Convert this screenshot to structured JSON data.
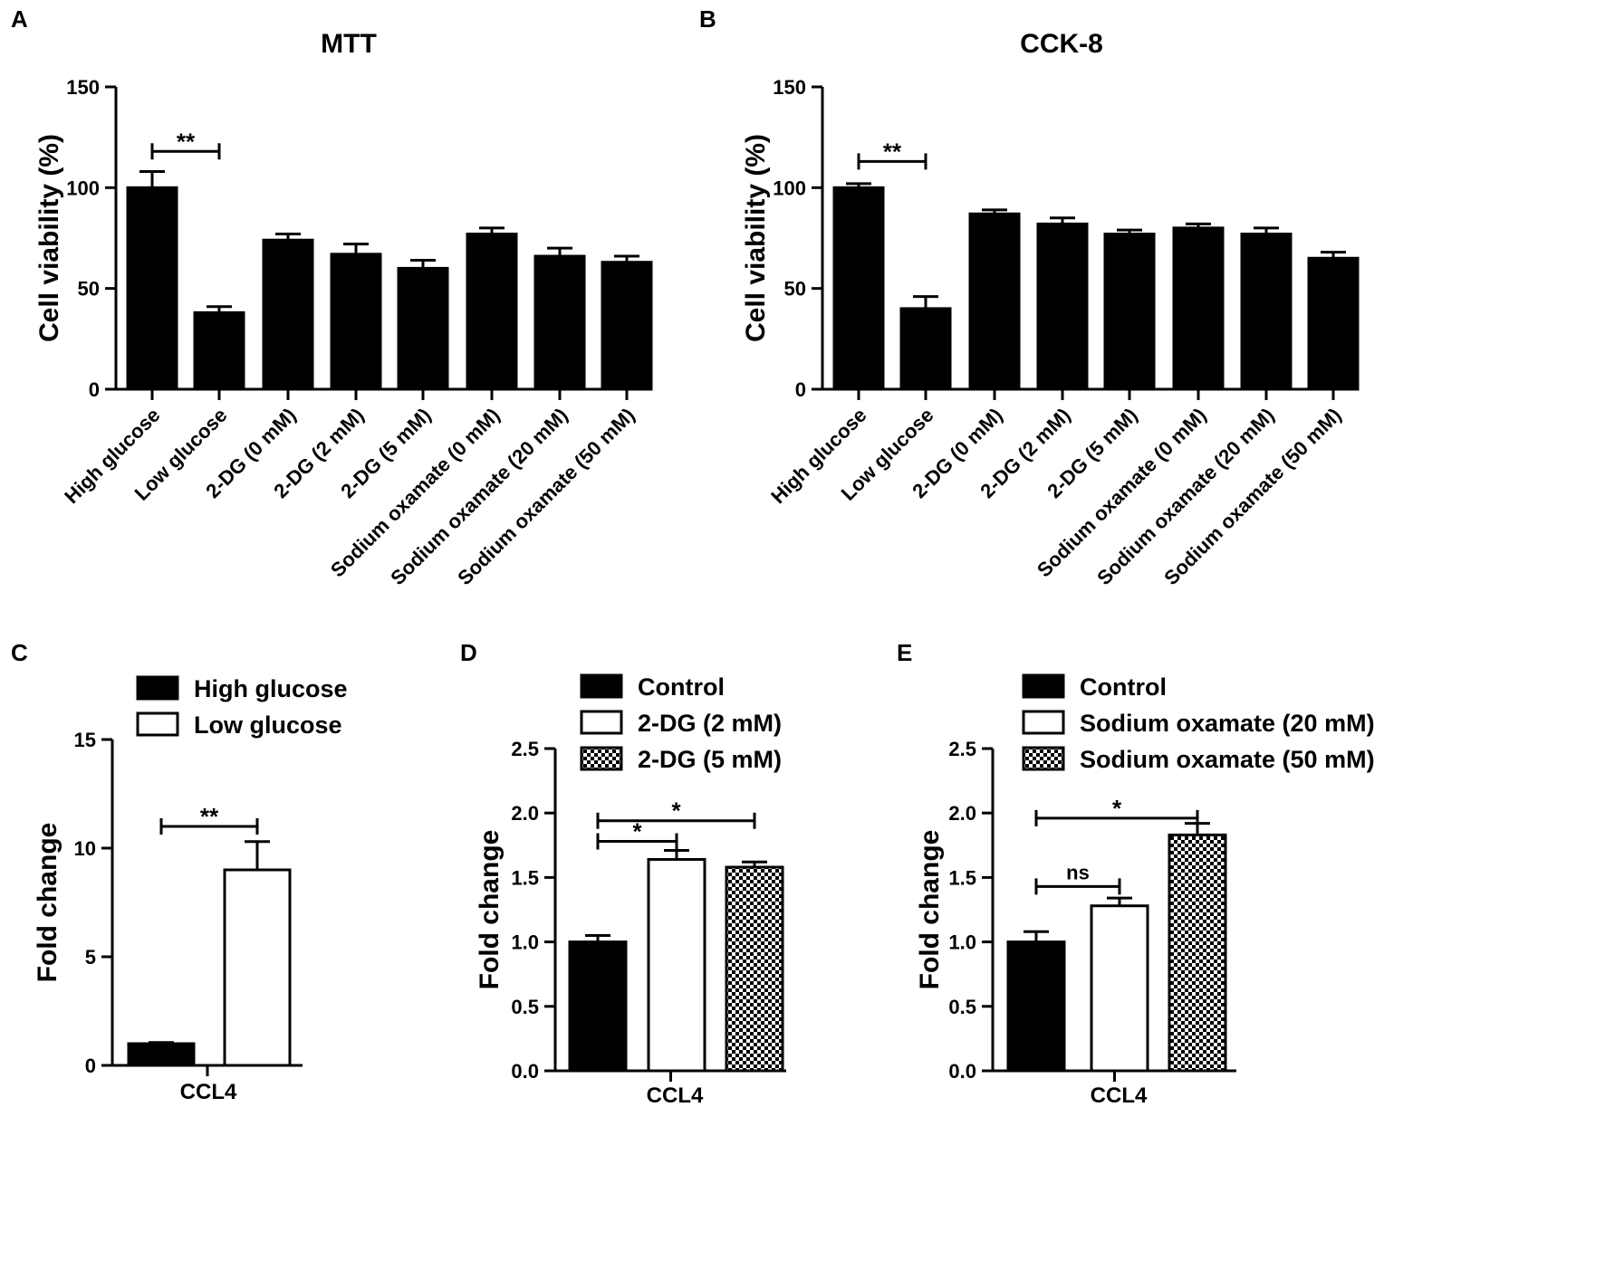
{
  "chart_data": [
    {
      "panel": "A",
      "type": "bar",
      "title": "MTT",
      "ylabel": "Cell viability (%)",
      "xlabel": "",
      "ylim": [
        0,
        150
      ],
      "yticks": [
        "0",
        "50",
        "100",
        "150"
      ],
      "categories": [
        "High glucose",
        "Low glucose",
        "2-DG (0 mM)",
        "2-DG (2 mM)",
        "2-DG (5 mM)",
        "Sodium oxamate (0 mM)",
        "Sodium oxamate (20 mM)",
        "Sodium oxamate (50 mM)"
      ],
      "values": [
        100,
        38,
        74,
        67,
        60,
        77,
        66,
        63
      ],
      "errors": [
        8,
        3,
        3,
        5,
        4,
        3,
        4,
        3
      ],
      "fills": [
        "solid",
        "solid",
        "solid",
        "solid",
        "solid",
        "solid",
        "solid",
        "solid"
      ],
      "significance": [
        {
          "from": 0,
          "to": 1,
          "label": "**",
          "y": 118
        }
      ]
    },
    {
      "panel": "B",
      "type": "bar",
      "title": "CCK-8",
      "ylabel": "Cell viability (%)",
      "xlabel": "",
      "ylim": [
        0,
        150
      ],
      "yticks": [
        "0",
        "50",
        "100",
        "150"
      ],
      "categories": [
        "High glucose",
        "Low glucose",
        "2-DG (0 mM)",
        "2-DG (2 mM)",
        "2-DG (5 mM)",
        "Sodium oxamate (0 mM)",
        "Sodium oxamate (20 mM)",
        "Sodium oxamate (50 mM)"
      ],
      "values": [
        100,
        40,
        87,
        82,
        77,
        80,
        77,
        65
      ],
      "errors": [
        2,
        6,
        2,
        3,
        2,
        2,
        3,
        3
      ],
      "fills": [
        "solid",
        "solid",
        "solid",
        "solid",
        "solid",
        "solid",
        "solid",
        "solid"
      ],
      "significance": [
        {
          "from": 0,
          "to": 1,
          "label": "**",
          "y": 113
        }
      ]
    },
    {
      "panel": "C",
      "type": "bar",
      "title": "",
      "ylabel": "Fold change",
      "xlabel": "CCL4",
      "ylim": [
        0,
        15
      ],
      "yticks": [
        "0",
        "5",
        "10",
        "15"
      ],
      "categories": [
        "High glucose",
        "Low glucose"
      ],
      "values": [
        1.0,
        9.0
      ],
      "errors": [
        0.05,
        1.3
      ],
      "fills": [
        "solid",
        "white"
      ],
      "legend": [
        "High glucose",
        "Low glucose"
      ],
      "significance": [
        {
          "from": 0,
          "to": 1,
          "label": "**",
          "y": 11.0
        }
      ]
    },
    {
      "panel": "D",
      "type": "bar",
      "title": "",
      "ylabel": "Fold change",
      "xlabel": "CCL4",
      "ylim": [
        0,
        2.5
      ],
      "yticks": [
        "0.0",
        "0.5",
        "1.0",
        "1.5",
        "2.0",
        "2.5"
      ],
      "categories": [
        "Control",
        "2-DG (2 mM)",
        "2-DG (5 mM)"
      ],
      "values": [
        1.0,
        1.64,
        1.58
      ],
      "errors": [
        0.05,
        0.07,
        0.04
      ],
      "fills": [
        "solid",
        "white",
        "check"
      ],
      "legend": [
        "Control",
        "2-DG (2 mM)",
        "2-DG (5 mM)"
      ],
      "significance": [
        {
          "from": 0,
          "to": 1,
          "label": "*",
          "y": 1.78
        },
        {
          "from": 0,
          "to": 2,
          "label": "*",
          "y": 1.94
        }
      ]
    },
    {
      "panel": "E",
      "type": "bar",
      "title": "",
      "ylabel": "Fold change",
      "xlabel": "CCL4",
      "ylim": [
        0,
        2.5
      ],
      "yticks": [
        "0.0",
        "0.5",
        "1.0",
        "1.5",
        "2.0",
        "2.5"
      ],
      "categories": [
        "Control",
        "Sodium oxamate (20 mM)",
        "Sodium oxamate (50 mM)"
      ],
      "values": [
        1.0,
        1.28,
        1.83
      ],
      "errors": [
        0.08,
        0.06,
        0.09
      ],
      "fills": [
        "solid",
        "white",
        "check"
      ],
      "legend": [
        "Control",
        "Sodium oxamate (20 mM)",
        "Sodium oxamate (50 mM)"
      ],
      "significance": [
        {
          "from": 0,
          "to": 1,
          "label": "ns",
          "y": 1.43
        },
        {
          "from": 0,
          "to": 2,
          "label": "*",
          "y": 1.96
        }
      ]
    }
  ]
}
